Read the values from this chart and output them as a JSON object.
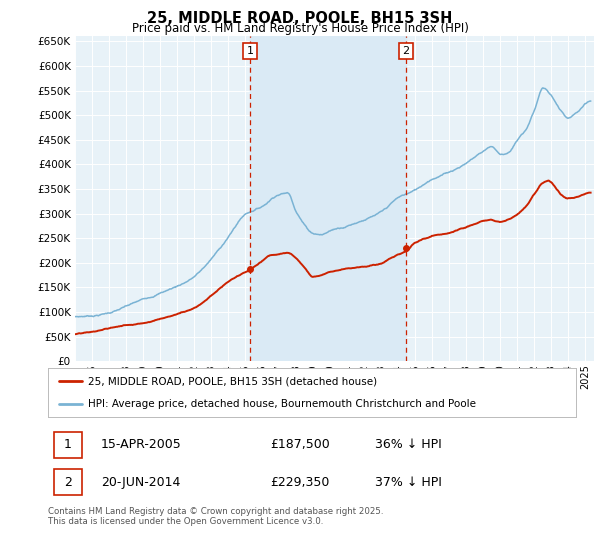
{
  "title": "25, MIDDLE ROAD, POOLE, BH15 3SH",
  "subtitle": "Price paid vs. HM Land Registry's House Price Index (HPI)",
  "ylim": [
    0,
    660000
  ],
  "yticks": [
    0,
    50000,
    100000,
    150000,
    200000,
    250000,
    300000,
    350000,
    400000,
    450000,
    500000,
    550000,
    600000,
    650000
  ],
  "xlim_start": 1995.0,
  "xlim_end": 2025.5,
  "hpi_color": "#7ab3d4",
  "price_color": "#cc2200",
  "shade_color": "#daeaf5",
  "bg_color": "#e8f2f8",
  "grid_color": "#ffffff",
  "marker1_x": 2005.28,
  "marker1_y": 187500,
  "marker2_x": 2014.46,
  "marker2_y": 229350,
  "legend_label1": "25, MIDDLE ROAD, POOLE, BH15 3SH (detached house)",
  "legend_label2": "HPI: Average price, detached house, Bournemouth Christchurch and Poole",
  "marker1_date": "15-APR-2005",
  "marker1_price": "£187,500",
  "marker1_hpi": "36% ↓ HPI",
  "marker2_date": "20-JUN-2014",
  "marker2_price": "£229,350",
  "marker2_hpi": "37% ↓ HPI",
  "footer": "Contains HM Land Registry data © Crown copyright and database right 2025.\nThis data is licensed under the Open Government Licence v3.0."
}
